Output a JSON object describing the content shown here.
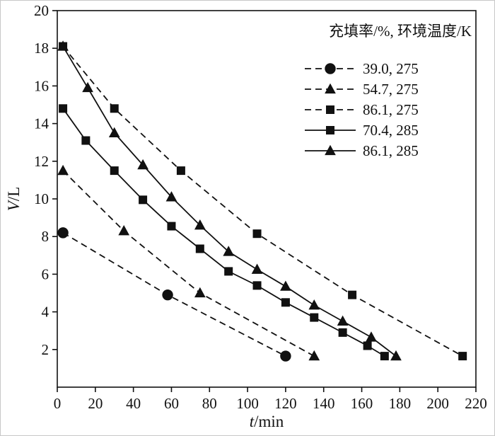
{
  "chart_data": {
    "type": "line",
    "title": "",
    "xlabel": "t/min",
    "ylabel": "V/L",
    "xlim": [
      0,
      220
    ],
    "ylim": [
      0,
      20
    ],
    "xticks": [
      0,
      20,
      40,
      60,
      80,
      100,
      120,
      140,
      160,
      180,
      200,
      220
    ],
    "yticks": [
      2,
      4,
      6,
      8,
      10,
      12,
      14,
      16,
      18,
      20
    ],
    "grid": false,
    "line_color": "#111111",
    "legend_position": "top-right",
    "legend_title": "充填率/%, 环境温度/K",
    "series": [
      {
        "name": "39.0, 275",
        "marker": "circle",
        "line": "dashed",
        "points": [
          [
            3,
            8.2
          ],
          [
            58,
            4.9
          ],
          [
            120,
            1.65
          ]
        ]
      },
      {
        "name": "54.7, 275",
        "marker": "triangle",
        "line": "dashed",
        "points": [
          [
            3,
            11.5
          ],
          [
            35,
            8.3
          ],
          [
            75,
            5.0
          ],
          [
            135,
            1.65
          ]
        ]
      },
      {
        "name": "86.1, 275",
        "marker": "square",
        "line": "dashed",
        "points": [
          [
            3,
            18.1
          ],
          [
            30,
            14.8
          ],
          [
            65,
            11.5
          ],
          [
            105,
            8.15
          ],
          [
            155,
            4.9
          ],
          [
            213,
            1.65
          ]
        ]
      },
      {
        "name": "70.4, 285",
        "marker": "square",
        "line": "solid",
        "points": [
          [
            3,
            14.8
          ],
          [
            15,
            13.1
          ],
          [
            30,
            11.5
          ],
          [
            45,
            9.95
          ],
          [
            60,
            8.55
          ],
          [
            75,
            7.35
          ],
          [
            90,
            6.15
          ],
          [
            105,
            5.4
          ],
          [
            120,
            4.5
          ],
          [
            135,
            3.7
          ],
          [
            150,
            2.9
          ],
          [
            163,
            2.2
          ],
          [
            172,
            1.65
          ]
        ]
      },
      {
        "name": "86.1, 285",
        "marker": "triangle",
        "line": "solid",
        "points": [
          [
            3,
            18.1
          ],
          [
            16,
            15.9
          ],
          [
            30,
            13.5
          ],
          [
            45,
            11.8
          ],
          [
            60,
            10.1
          ],
          [
            75,
            8.6
          ],
          [
            90,
            7.2
          ],
          [
            105,
            6.25
          ],
          [
            120,
            5.35
          ],
          [
            135,
            4.35
          ],
          [
            150,
            3.5
          ],
          [
            165,
            2.65
          ],
          [
            178,
            1.65
          ]
        ]
      }
    ]
  }
}
